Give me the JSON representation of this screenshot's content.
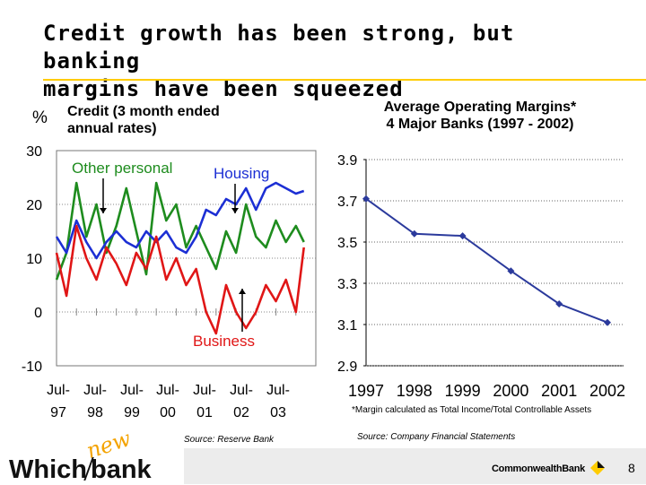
{
  "slide": {
    "title_line1": "Credit growth has been strong, but banking",
    "title_line2": "margins have been squeezed",
    "page_number": "8",
    "footer_logo_left_which": "Which",
    "footer_logo_left_new": "new",
    "footer_logo_left_bank": "bank",
    "footer_logo_right": "CommonwealthBank"
  },
  "colors": {
    "accent_yellow": "#ffcc00",
    "credit_other_personal": "#1e8c1e",
    "credit_housing": "#1c2fd4",
    "credit_business": "#e01616",
    "margin_line": "#2b3a9c"
  },
  "chart_data": [
    {
      "type": "line",
      "title_line1": "Credit (3 month ended",
      "title_line2": "annual rates)",
      "ylabel": "%",
      "ylim": [
        -10,
        30
      ],
      "yticks": [
        "30",
        "20",
        "10",
        "0",
        "-10"
      ],
      "ytick_values": [
        30,
        20,
        10,
        0,
        -10
      ],
      "x_tick_top": [
        "Jul-",
        "Jul-",
        "Jul-",
        "Jul-",
        "Jul-",
        "Jul-",
        "Jul-"
      ],
      "x_tick_bottom": [
        "97",
        "98",
        "99",
        "00",
        "01",
        "02",
        "03"
      ],
      "xlim": [
        1997.0,
        2003.5
      ],
      "annotations": [
        "Other personal",
        "Housing",
        "Business"
      ],
      "source": "Source: Reserve Bank",
      "series": [
        {
          "name": "Housing",
          "x": [
            1997.0,
            1997.25,
            1997.5,
            1997.75,
            1998.0,
            1998.25,
            1998.5,
            1998.75,
            1999.0,
            1999.25,
            1999.5,
            1999.75,
            2000.0,
            2000.25,
            2000.5,
            2000.75,
            2001.0,
            2001.25,
            2001.5,
            2001.75,
            2002.0,
            2002.25,
            2002.5,
            2002.75,
            2003.0,
            2003.2
          ],
          "values": [
            14,
            11,
            17,
            13,
            10,
            13,
            15,
            13,
            12,
            15,
            13,
            15,
            12,
            11,
            14,
            19,
            18,
            21,
            20,
            23,
            19,
            23,
            24,
            23,
            22,
            22.5
          ]
        },
        {
          "name": "Other personal",
          "x": [
            1997.0,
            1997.25,
            1997.5,
            1997.75,
            1998.0,
            1998.25,
            1998.5,
            1998.75,
            1999.0,
            1999.25,
            1999.5,
            1999.75,
            2000.0,
            2000.25,
            2000.5,
            2000.75,
            2001.0,
            2001.25,
            2001.5,
            2001.75,
            2002.0,
            2002.25,
            2002.5,
            2002.75,
            2003.0,
            2003.2
          ],
          "values": [
            6,
            11,
            24,
            14,
            20,
            11,
            16,
            23,
            15,
            7,
            24,
            17,
            20,
            12,
            16,
            12,
            8,
            15,
            11,
            20,
            14,
            12,
            17,
            13,
            16,
            13
          ]
        },
        {
          "name": "Business",
          "x": [
            1997.0,
            1997.25,
            1997.5,
            1997.75,
            1998.0,
            1998.25,
            1998.5,
            1998.75,
            1999.0,
            1999.25,
            1999.5,
            1999.75,
            2000.0,
            2000.25,
            2000.5,
            2000.75,
            2001.0,
            2001.25,
            2001.5,
            2001.75,
            2002.0,
            2002.25,
            2002.5,
            2002.75,
            2003.0,
            2003.2
          ],
          "values": [
            11,
            3,
            16,
            10,
            6,
            12,
            9,
            5,
            11,
            8,
            14,
            6,
            10,
            5,
            8,
            0,
            -4,
            5,
            0,
            -3,
            0,
            5,
            2,
            6,
            0,
            12
          ]
        }
      ]
    },
    {
      "type": "line",
      "title_line1": "Average Operating Margins*",
      "title_line2": "4 Major Banks (1997 - 2002)",
      "categories": [
        "1997",
        "1998",
        "1999",
        "2000",
        "2001",
        "2002"
      ],
      "ylim": [
        2.9,
        3.9
      ],
      "yticks": [
        "3.9",
        "3.7",
        "3.5",
        "3.3",
        "3.1",
        "2.9"
      ],
      "ytick_values": [
        3.9,
        3.7,
        3.5,
        3.3,
        3.1,
        2.9
      ],
      "series": [
        {
          "name": "Average Operating Margin",
          "values": [
            3.71,
            3.54,
            3.53,
            3.36,
            3.2,
            3.11
          ]
        }
      ],
      "footnote": "*Margin calculated as Total Income/Total Controllable Assets",
      "source": "Source: Company Financial Statements"
    }
  ]
}
